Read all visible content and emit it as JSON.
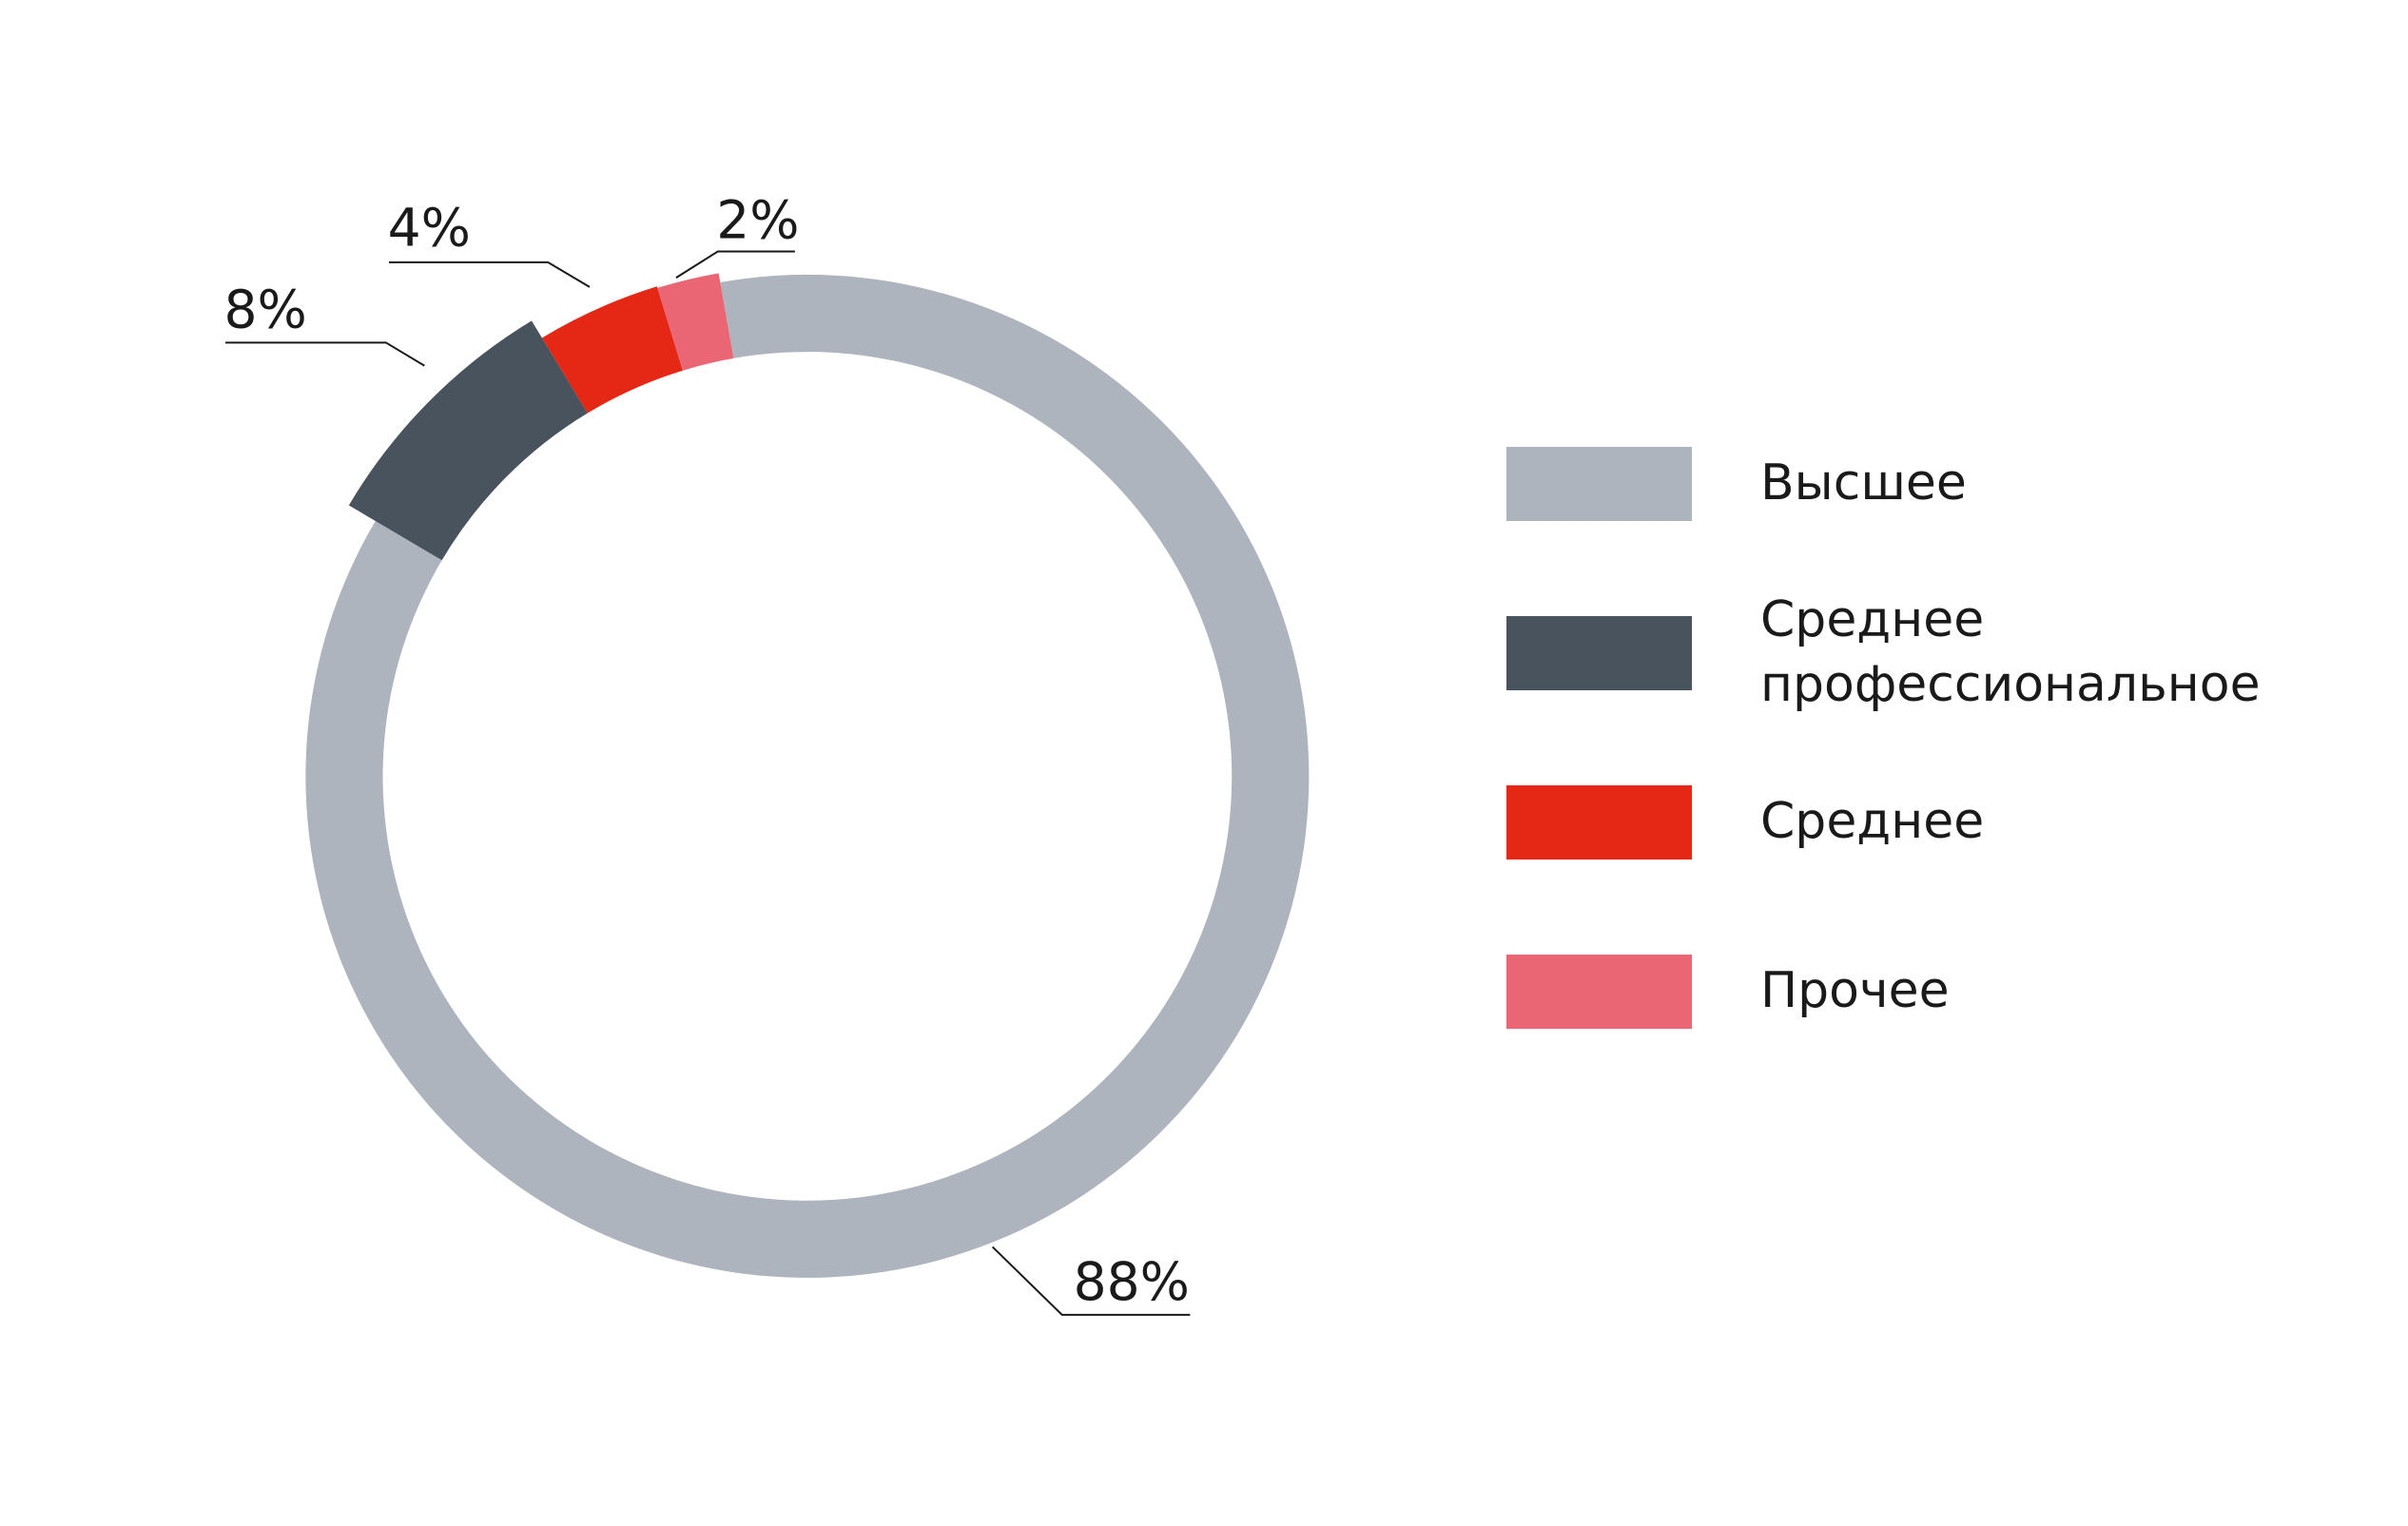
{
  "chart_data": {
    "type": "pie",
    "categories": [
      "Высшее",
      "Среднее профессиональное",
      "Среднее",
      "Прочее"
    ],
    "values": [
      88,
      8,
      4,
      2
    ],
    "value_labels": [
      "88%",
      "8%",
      "4%",
      "2%"
    ],
    "colors": [
      "#aeb4bd",
      "#48535d",
      "#e52815",
      "#ea6674"
    ]
  }
}
